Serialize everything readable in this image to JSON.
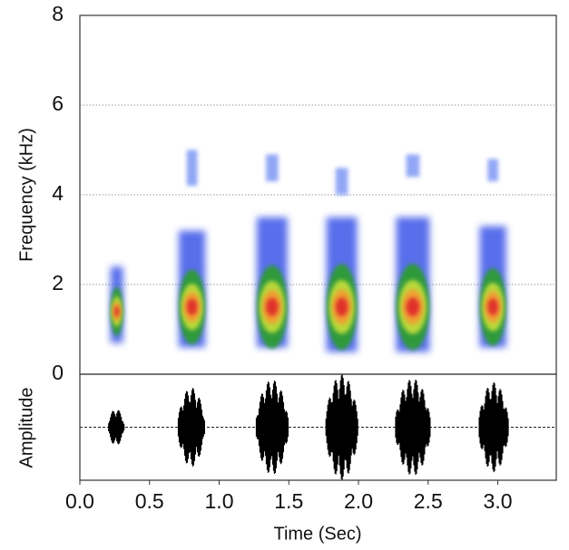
{
  "chart_data": [
    {
      "type": "spectrogram",
      "ylabel": "Frequency (kHz)",
      "xlim": [
        0,
        3.42
      ],
      "ylim": [
        0,
        8
      ],
      "yticks": [
        0,
        2,
        4,
        6,
        8
      ],
      "grid": true,
      "calls": [
        {
          "start": 0.22,
          "end": 0.31,
          "low": 0.7,
          "high": 2.4,
          "peak": 1.4
        },
        {
          "start": 0.71,
          "end": 0.9,
          "low": 0.6,
          "high": 3.2,
          "peak": 1.5,
          "upper_low": 4.2,
          "upper_high": 5.0
        },
        {
          "start": 1.27,
          "end": 1.49,
          "low": 0.6,
          "high": 3.5,
          "peak": 1.5,
          "upper_low": 4.3,
          "upper_high": 4.9
        },
        {
          "start": 1.77,
          "end": 1.99,
          "low": 0.5,
          "high": 3.5,
          "peak": 1.5,
          "upper_low": 4.0,
          "upper_high": 4.6
        },
        {
          "start": 2.27,
          "end": 2.51,
          "low": 0.5,
          "high": 3.5,
          "peak": 1.5,
          "upper_low": 4.4,
          "upper_high": 4.9
        },
        {
          "start": 2.87,
          "end": 3.06,
          "low": 0.6,
          "high": 3.3,
          "peak": 1.5,
          "upper_low": 4.3,
          "upper_high": 4.8
        }
      ]
    },
    {
      "type": "waveform",
      "ylabel": "Amplitude",
      "xlabel": "Time (Sec)",
      "xlim": [
        0,
        3.42
      ],
      "ylim": [
        -1,
        1
      ],
      "xticks": [
        {
          "value": 0,
          "label": "0.0"
        },
        {
          "value": 0.5,
          "label": "0.5"
        },
        {
          "value": 1,
          "label": "1.0"
        },
        {
          "value": 1.5,
          "label": "1.5"
        },
        {
          "value": 2,
          "label": "2.0"
        },
        {
          "value": 2.5,
          "label": "2.5"
        },
        {
          "value": 3,
          "label": "3.0"
        }
      ],
      "bursts": [
        {
          "start": 0.2,
          "end": 0.32,
          "amplitude": 0.35
        },
        {
          "start": 0.7,
          "end": 0.9,
          "amplitude": 0.75
        },
        {
          "start": 1.26,
          "end": 1.5,
          "amplitude": 0.9
        },
        {
          "start": 1.76,
          "end": 2.0,
          "amplitude": 1.0
        },
        {
          "start": 2.26,
          "end": 2.52,
          "amplitude": 0.92
        },
        {
          "start": 2.86,
          "end": 3.08,
          "amplitude": 0.85
        }
      ]
    }
  ]
}
